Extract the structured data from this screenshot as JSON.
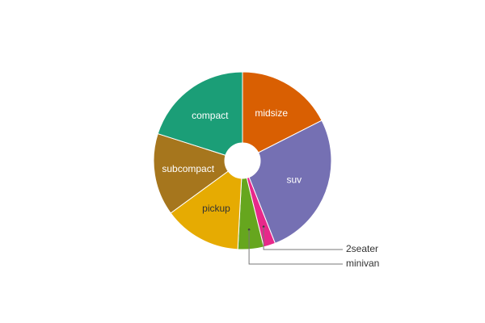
{
  "chart_data": {
    "type": "pie",
    "donut": true,
    "title": "",
    "legend": "none",
    "slices": [
      {
        "label": "midsize",
        "value": 41,
        "color": "#d95f02",
        "label_color": "#ffffff",
        "label_style": "inside"
      },
      {
        "label": "suv",
        "value": 62,
        "color": "#7570b3",
        "label_color": "#ffffff",
        "label_style": "inside"
      },
      {
        "label": "2seater",
        "value": 5,
        "color": "#e7298a",
        "label_color": "#333333",
        "label_style": "callout"
      },
      {
        "label": "minivan",
        "value": 11,
        "color": "#66a61e",
        "label_color": "#333333",
        "label_style": "callout"
      },
      {
        "label": "pickup",
        "value": 33,
        "color": "#e6ab02",
        "label_color": "#333333",
        "label_style": "inside"
      },
      {
        "label": "subcompact",
        "value": 35,
        "color": "#a6761d",
        "label_color": "#ffffff",
        "label_style": "inside"
      },
      {
        "label": "compact",
        "value": 47,
        "color": "#1b9e77",
        "label_color": "#ffffff",
        "label_style": "inside"
      }
    ]
  }
}
